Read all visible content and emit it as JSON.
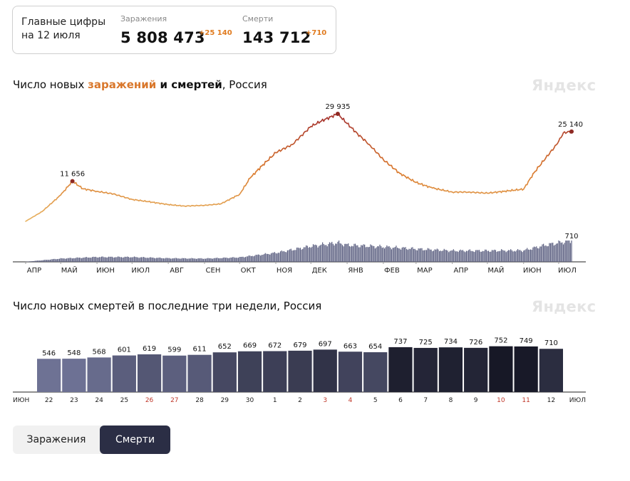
{
  "summary": {
    "title_line1": "Главные цифры",
    "title_line2": "на 12 июля",
    "infections_label": "Заражения",
    "infections_total": "5 808 473",
    "infections_delta": "+25 140",
    "deaths_label": "Смерти",
    "deaths_total": "143 712",
    "deaths_delta": "+710"
  },
  "chart1": {
    "title_before": "Число новых ",
    "title_infections": "заражений",
    "title_middle": " и ",
    "title_deaths": "смертей",
    "title_after": ", Россия",
    "watermark": "Яндекс"
  },
  "chart2": {
    "title": "Число новых смертей в последние три недели, Россия",
    "watermark": "Яндекс"
  },
  "toggle": {
    "infections_label": "Заражения",
    "deaths_label": "Смерти",
    "selected": "Смерти"
  },
  "colors": {
    "low": "#e9b867",
    "mid": "#d9772b",
    "high": "#a8362e",
    "marker": "#8e2a24",
    "deaths_bar": "#6f7396",
    "weekend": "#c0392b",
    "selected_button": "#2b2e45"
  },
  "chart_data": [
    {
      "type": "line",
      "series": [
        {
          "name": "заражения",
          "x": [
            "2020-04-01",
            "2020-04-15",
            "2020-05-01",
            "2020-05-11",
            "2020-05-20",
            "2020-06-01",
            "2020-06-15",
            "2020-07-01",
            "2020-07-15",
            "2020-08-01",
            "2020-08-15",
            "2020-09-01",
            "2020-09-15",
            "2020-10-01",
            "2020-10-10",
            "2020-10-20",
            "2020-11-01",
            "2020-11-15",
            "2020-12-01",
            "2020-12-10",
            "2020-12-24",
            "2021-01-01",
            "2021-01-10",
            "2021-01-20",
            "2021-02-01",
            "2021-02-15",
            "2021-03-01",
            "2021-03-15",
            "2021-04-01",
            "2021-04-15",
            "2021-05-01",
            "2021-05-15",
            "2021-06-01",
            "2021-06-10",
            "2021-06-20",
            "2021-06-30",
            "2021-07-05",
            "2021-07-12"
          ],
          "y": [
            770,
            3400,
            7900,
            11656,
            9600,
            8900,
            8200,
            6700,
            6100,
            5300,
            4900,
            5100,
            5500,
            8100,
            12500,
            15800,
            19400,
            21600,
            26500,
            28000,
            29935,
            27300,
            24500,
            21600,
            17500,
            13800,
            11300,
            9800,
            8700,
            8700,
            8400,
            8900,
            9500,
            14000,
            18000,
            21900,
            24800,
            25140
          ]
        },
        {
          "name": "смерти",
          "x": [
            "2020-04-01",
            "2020-05-01",
            "2020-06-01",
            "2020-07-01",
            "2020-08-01",
            "2020-09-01",
            "2020-10-01",
            "2020-11-01",
            "2020-12-01",
            "2020-12-24",
            "2021-01-01",
            "2021-02-01",
            "2021-03-01",
            "2021-04-01",
            "2021-05-01",
            "2021-06-01",
            "2021-06-20",
            "2021-07-12"
          ],
          "y": [
            4,
            110,
            160,
            160,
            120,
            110,
            150,
            300,
            520,
            635,
            560,
            500,
            430,
            370,
            370,
            380,
            560,
            710
          ]
        }
      ],
      "categories": [
        "АПР",
        "МАЙ",
        "ИЮН",
        "ИЮЛ",
        "АВГ",
        "СЕН",
        "ОКТ",
        "НОЯ",
        "ДЕК",
        "ЯНВ",
        "ФЕВ",
        "МАР",
        "АПР",
        "МАЙ",
        "ИЮН",
        "ИЮЛ"
      ],
      "annotations": [
        {
          "x": "2020-05-11",
          "y": 11656,
          "label": "11 656"
        },
        {
          "x": "2020-12-24",
          "y": 29935,
          "label": "29 935"
        },
        {
          "x": "2021-07-12",
          "y": 25140,
          "label": "25 140"
        },
        {
          "x": "2021-07-12",
          "y": 710,
          "label": "710"
        }
      ],
      "title": "Число новых заражений и смертей, Россия"
    },
    {
      "type": "bar",
      "categories": [
        "22",
        "23",
        "24",
        "25",
        "26",
        "27",
        "28",
        "29",
        "30",
        "1",
        "2",
        "3",
        "4",
        "5",
        "6",
        "7",
        "8",
        "9",
        "10",
        "11",
        "12"
      ],
      "weekend_categories": [
        "26",
        "27",
        "3",
        "4",
        "10",
        "11"
      ],
      "axis_start_label": "ИЮН",
      "axis_end_label": "ИЮЛ",
      "values": [
        546,
        548,
        568,
        601,
        619,
        599,
        611,
        652,
        669,
        672,
        679,
        697,
        663,
        654,
        737,
        725,
        734,
        726,
        752,
        749,
        710
      ],
      "title": "Число новых смертей в последние три недели, Россия"
    }
  ]
}
